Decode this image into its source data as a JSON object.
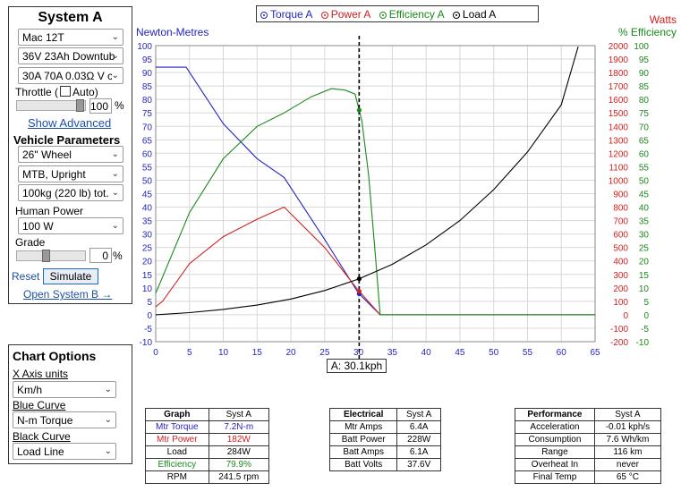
{
  "system": {
    "title": "System A",
    "motor": "Mac 12T",
    "battery": "36V 23Ah Downtub",
    "controller": "30A 70A 0.03Ω V c",
    "throttle_label": "Throttle (",
    "auto_label": "Auto)",
    "throttle_value": "100",
    "throttle_unit": "%",
    "show_advanced": "Show Advanced",
    "vehicle_title": "Vehicle Parameters",
    "wheel": "26\"  Wheel",
    "bike_type": "MTB, Upright",
    "weight": "100kg (220 lb) tot.",
    "human_power_label": "Human Power",
    "human_power": "100 W",
    "grade_label": "Grade",
    "grade_value": "0",
    "grade_unit": "%",
    "reset": "Reset",
    "simulate": "Simulate",
    "open_system_b": "Open System B →"
  },
  "chart_options": {
    "title": "Chart Options",
    "x_axis_label": "X Axis units",
    "x_axis_value": "Km/h",
    "blue_label": "Blue Curve",
    "blue_value": "N-m Torque",
    "black_label": "Black Curve",
    "black_value": "Load Line"
  },
  "legend": {
    "torque": "Torque A",
    "power": "Power A",
    "efficiency": "Efficiency A",
    "load": "Load A"
  },
  "colors": {
    "torque": "#2525c0",
    "power": "#d02020",
    "efficiency": "#1a8a1a",
    "load": "#000000",
    "grid": "#d8d8d8"
  },
  "chart_data": {
    "type": "line",
    "x_unit": "kph",
    "xlim": [
      0,
      65
    ],
    "x_ticks": [
      "0",
      "5",
      "10",
      "15",
      "20",
      "25",
      "30",
      "35",
      "40",
      "45",
      "50",
      "55",
      "60",
      "65"
    ],
    "left_axis": {
      "label": "Newton-Metres",
      "ylim": [
        -10,
        100
      ],
      "ticks": [
        "-10",
        "-5",
        "0",
        "5",
        "10",
        "15",
        "20",
        "25",
        "30",
        "35",
        "40",
        "45",
        "50",
        "55",
        "60",
        "65",
        "70",
        "75",
        "80",
        "85",
        "90",
        "95",
        "100"
      ]
    },
    "right_axis_watts": {
      "label": "Watts",
      "ylim": [
        -200,
        2000
      ],
      "ticks": [
        "-200",
        "-100",
        "0",
        "100",
        "200",
        "300",
        "400",
        "500",
        "600",
        "700",
        "800",
        "900",
        "1000",
        "1100",
        "1200",
        "1300",
        "1400",
        "1500",
        "1600",
        "1700",
        "1800",
        "1900",
        "2000"
      ]
    },
    "right_axis_eff": {
      "label": "% Efficiency",
      "ylim": [
        -10,
        100
      ],
      "ticks": [
        "-10",
        "-5",
        "0",
        "5",
        "10",
        "15",
        "20",
        "25",
        "30",
        "35",
        "40",
        "45",
        "50",
        "55",
        "60",
        "65",
        "70",
        "75",
        "80",
        "85",
        "90",
        "95",
        "100"
      ]
    },
    "series": [
      {
        "name": "Torque A",
        "axis": "left",
        "x": [
          0,
          4.5,
          10,
          15,
          19,
          25,
          30,
          33.2,
          65
        ],
        "y": [
          92,
          92,
          71,
          58,
          51,
          28,
          8,
          0,
          0
        ]
      },
      {
        "name": "Power A",
        "axis": "watts",
        "x": [
          0,
          1,
          5,
          10,
          15,
          19,
          25,
          30,
          33.2,
          65
        ],
        "y": [
          60,
          100,
          380,
          580,
          710,
          800,
          500,
          180,
          0,
          0
        ]
      },
      {
        "name": "Efficiency A",
        "axis": "eff",
        "x": [
          0,
          1,
          5,
          10,
          15,
          19,
          23,
          26,
          28,
          29.5,
          30.5,
          31.5,
          32.5,
          33.2,
          65
        ],
        "y": [
          8,
          14,
          38,
          58,
          70,
          75,
          81,
          84,
          83.5,
          82,
          72,
          52,
          22,
          0,
          0
        ]
      },
      {
        "name": "Load A",
        "axis": "watts",
        "x": [
          0,
          5,
          10,
          15,
          20,
          25,
          30,
          35,
          40,
          45,
          50,
          55,
          60,
          62.5
        ],
        "y": [
          0,
          16,
          40,
          72,
          117,
          180,
          265,
          375,
          520,
          700,
          930,
          1210,
          1560,
          1993
        ]
      }
    ],
    "cursor": {
      "x": 30.1,
      "label": "A: 30.1kph"
    }
  },
  "graph_table": {
    "headers": [
      "Graph",
      "Syst A"
    ],
    "rows": [
      [
        "Mtr Torque",
        "7.2N-m"
      ],
      [
        "Mtr Power",
        "182W"
      ],
      [
        "Load",
        "284W"
      ],
      [
        "Efficiency",
        "79.9%"
      ],
      [
        "RPM",
        "241.5 rpm"
      ]
    ]
  },
  "electrical_table": {
    "headers": [
      "Electrical",
      "Syst A"
    ],
    "rows": [
      [
        "Mtr Amps",
        "6.4A"
      ],
      [
        "Batt Power",
        "228W"
      ],
      [
        "Batt Amps",
        "6.1A"
      ],
      [
        "Batt Volts",
        "37.6V"
      ]
    ]
  },
  "performance_table": {
    "headers": [
      "Performance",
      "Syst A"
    ],
    "rows": [
      [
        "Acceleration",
        "-0.01 kph/s"
      ],
      [
        "Consumption",
        "7.6 Wh/km"
      ],
      [
        "Range",
        "116 km"
      ],
      [
        "Overheat In",
        "never"
      ],
      [
        "Final Temp",
        "65 °C"
      ]
    ]
  }
}
